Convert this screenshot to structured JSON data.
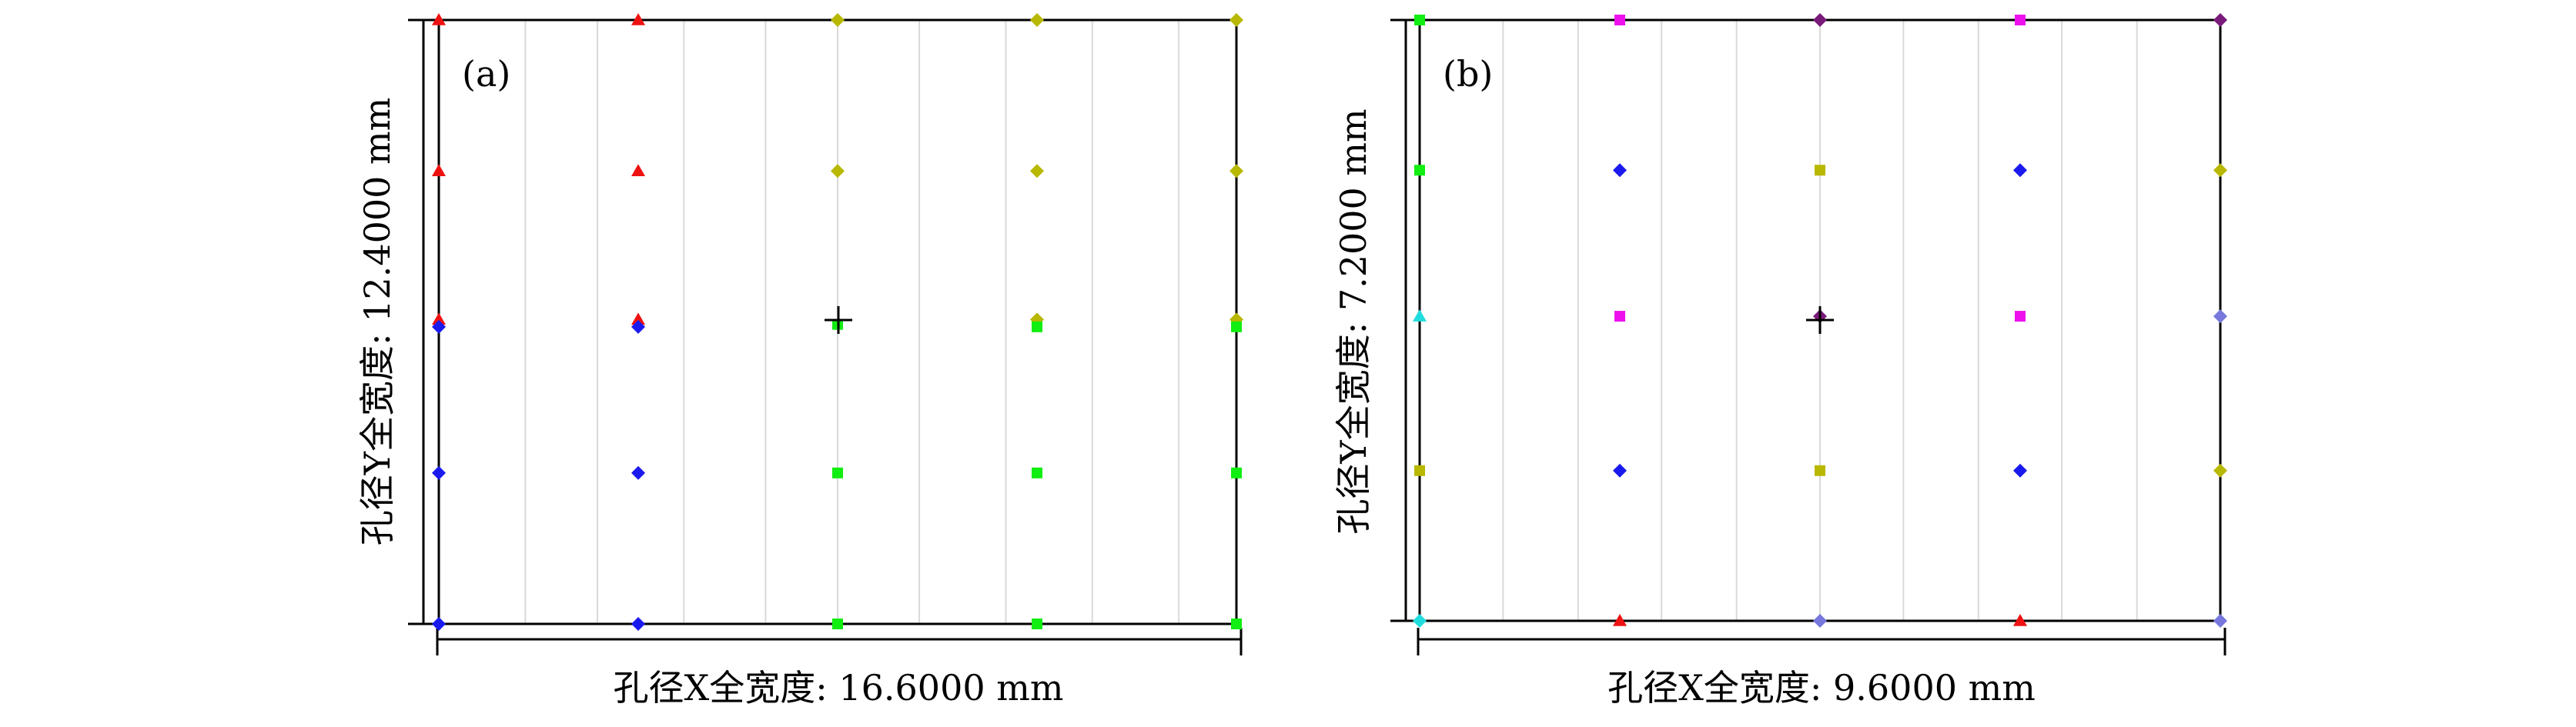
{
  "chart_data": [
    {
      "type": "scatter",
      "panel_label": "(a)",
      "xlabel": "孔径X全宽度: 16.6000 mm",
      "ylabel": "孔径Y全宽度: 12.4000 mm",
      "xlim": [
        -8.3,
        8.3
      ],
      "ylim": [
        -6.2,
        6.2
      ],
      "grid": "vertical",
      "gridlines_x": [
        -6.5,
        -5.0,
        -3.2,
        -1.5,
        0,
        1.7,
        3.5,
        5.3,
        7.1
      ],
      "center_marker": [
        0,
        0
      ],
      "colors": {
        "red": "#ee1111",
        "blue": "#1a1aee",
        "olive": "#b8b800",
        "green": "#11ee11"
      },
      "points": [
        {
          "x": -8.3,
          "y": 6.2,
          "color": "red",
          "marker": "triangle"
        },
        {
          "x": -4.15,
          "y": 6.2,
          "color": "red",
          "marker": "triangle"
        },
        {
          "x": 0,
          "y": 6.2,
          "color": "olive",
          "marker": "diamond"
        },
        {
          "x": 4.15,
          "y": 6.2,
          "color": "olive",
          "marker": "diamond"
        },
        {
          "x": 8.3,
          "y": 6.2,
          "color": "olive",
          "marker": "diamond"
        },
        {
          "x": -8.3,
          "y": 3.1,
          "color": "red",
          "marker": "triangle"
        },
        {
          "x": -4.15,
          "y": 3.1,
          "color": "red",
          "marker": "triangle"
        },
        {
          "x": 0,
          "y": 3.1,
          "color": "olive",
          "marker": "diamond"
        },
        {
          "x": 4.15,
          "y": 3.1,
          "color": "olive",
          "marker": "diamond"
        },
        {
          "x": 8.3,
          "y": 3.1,
          "color": "olive",
          "marker": "diamond"
        },
        {
          "x": -8.3,
          "y": 0.05,
          "color": "red",
          "marker": "triangle"
        },
        {
          "x": -8.3,
          "y": -0.1,
          "color": "blue",
          "marker": "diamond"
        },
        {
          "x": -4.15,
          "y": 0.05,
          "color": "red",
          "marker": "triangle"
        },
        {
          "x": -4.15,
          "y": -0.1,
          "color": "blue",
          "marker": "diamond"
        },
        {
          "x": 0,
          "y": -0.05,
          "color": "green",
          "marker": "square"
        },
        {
          "x": 4.15,
          "y": 0.05,
          "color": "olive",
          "marker": "diamond"
        },
        {
          "x": 4.15,
          "y": -0.1,
          "color": "green",
          "marker": "square"
        },
        {
          "x": 8.3,
          "y": 0.05,
          "color": "olive",
          "marker": "diamond"
        },
        {
          "x": 8.3,
          "y": -0.1,
          "color": "green",
          "marker": "square"
        },
        {
          "x": -8.3,
          "y": -3.1,
          "color": "blue",
          "marker": "diamond"
        },
        {
          "x": -4.15,
          "y": -3.1,
          "color": "blue",
          "marker": "diamond"
        },
        {
          "x": 0,
          "y": -3.1,
          "color": "green",
          "marker": "square"
        },
        {
          "x": 4.15,
          "y": -3.1,
          "color": "green",
          "marker": "square"
        },
        {
          "x": 8.3,
          "y": -3.1,
          "color": "green",
          "marker": "square"
        },
        {
          "x": -8.3,
          "y": -6.2,
          "color": "blue",
          "marker": "diamond"
        },
        {
          "x": -4.15,
          "y": -6.2,
          "color": "blue",
          "marker": "diamond"
        },
        {
          "x": 0,
          "y": -6.2,
          "color": "green",
          "marker": "square"
        },
        {
          "x": 4.15,
          "y": -6.2,
          "color": "green",
          "marker": "square"
        },
        {
          "x": 8.3,
          "y": -6.2,
          "color": "green",
          "marker": "square"
        }
      ]
    },
    {
      "type": "scatter",
      "panel_label": "(b)",
      "xlabel": "孔径X全宽度: 9.6000 mm",
      "ylabel": "孔径Y全宽度: 7.2000 mm",
      "xlim": [
        -4.8,
        4.8
      ],
      "ylim": [
        -3.6,
        3.6
      ],
      "grid": "vertical",
      "gridlines_x": [
        -3.8,
        -2.9,
        -1.9,
        -1.0,
        0,
        1.0,
        1.9,
        2.9,
        3.8
      ],
      "center_marker": [
        0,
        0
      ],
      "colors": {
        "green": "#11ee11",
        "magenta": "#ee11ee",
        "purple": "#7a1a7a",
        "blue": "#1a1aee",
        "olive": "#b8b800",
        "cyan": "#22dddd",
        "violet": "#7777dd",
        "red": "#ee1111"
      },
      "points": [
        {
          "x": -4.8,
          "y": 3.6,
          "color": "green",
          "marker": "square"
        },
        {
          "x": -2.4,
          "y": 3.6,
          "color": "magenta",
          "marker": "square"
        },
        {
          "x": 0,
          "y": 3.6,
          "color": "purple",
          "marker": "diamond"
        },
        {
          "x": 2.4,
          "y": 3.6,
          "color": "magenta",
          "marker": "square"
        },
        {
          "x": 4.8,
          "y": 3.6,
          "color": "purple",
          "marker": "diamond"
        },
        {
          "x": -4.8,
          "y": 1.8,
          "color": "green",
          "marker": "square"
        },
        {
          "x": -2.4,
          "y": 1.8,
          "color": "blue",
          "marker": "diamond"
        },
        {
          "x": 0,
          "y": 1.8,
          "color": "olive",
          "marker": "square"
        },
        {
          "x": 2.4,
          "y": 1.8,
          "color": "blue",
          "marker": "diamond"
        },
        {
          "x": 4.8,
          "y": 1.8,
          "color": "olive",
          "marker": "diamond"
        },
        {
          "x": -4.8,
          "y": 0.05,
          "color": "cyan",
          "marker": "triangle"
        },
        {
          "x": -2.4,
          "y": 0.05,
          "color": "magenta",
          "marker": "square"
        },
        {
          "x": 0,
          "y": 0.05,
          "color": "purple",
          "marker": "diamond"
        },
        {
          "x": 2.4,
          "y": 0.05,
          "color": "magenta",
          "marker": "square"
        },
        {
          "x": 4.8,
          "y": 0.05,
          "color": "violet",
          "marker": "diamond"
        },
        {
          "x": -4.8,
          "y": -1.8,
          "color": "olive",
          "marker": "square"
        },
        {
          "x": -2.4,
          "y": -1.8,
          "color": "blue",
          "marker": "diamond"
        },
        {
          "x": 0,
          "y": -1.8,
          "color": "olive",
          "marker": "square"
        },
        {
          "x": 2.4,
          "y": -1.8,
          "color": "blue",
          "marker": "diamond"
        },
        {
          "x": 4.8,
          "y": -1.8,
          "color": "olive",
          "marker": "diamond"
        },
        {
          "x": -4.8,
          "y": -3.6,
          "color": "cyan",
          "marker": "diamond"
        },
        {
          "x": -2.4,
          "y": -3.6,
          "color": "red",
          "marker": "triangle"
        },
        {
          "x": 0,
          "y": -3.6,
          "color": "violet",
          "marker": "diamond"
        },
        {
          "x": 2.4,
          "y": -3.6,
          "color": "red",
          "marker": "triangle"
        },
        {
          "x": 4.8,
          "y": -3.6,
          "color": "violet",
          "marker": "diamond"
        }
      ]
    }
  ]
}
